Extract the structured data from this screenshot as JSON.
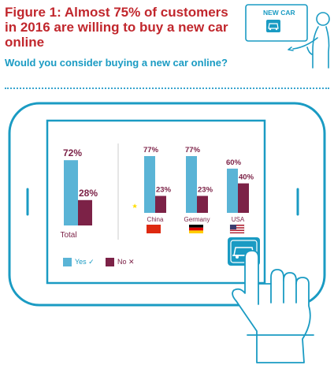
{
  "figure": {
    "title": "Figure 1: Almost 75% of customers in 2016 are willing to buy a new car online",
    "subtitle": "Would you consider buying a new car online?",
    "sign_label": "NEW CAR"
  },
  "colors": {
    "yes": "#5ab4d6",
    "no": "#7c2247",
    "frame": "#1a9bc3",
    "title": "#c1272d"
  },
  "chart_data": {
    "type": "bar",
    "categories": [
      "Total",
      "China",
      "Germany",
      "USA"
    ],
    "series": [
      {
        "name": "Yes",
        "values": [
          72,
          77,
          77,
          60
        ],
        "labels": [
          "72%",
          "77%",
          "77%",
          "60%"
        ]
      },
      {
        "name": "No",
        "values": [
          28,
          23,
          23,
          40
        ],
        "labels": [
          "28%",
          "23%",
          "23%",
          "40%"
        ]
      }
    ],
    "legend": [
      "Yes ✓",
      "No ✕"
    ],
    "legend_position": "bottom-left",
    "ylim": [
      0,
      100
    ],
    "grid": false
  }
}
